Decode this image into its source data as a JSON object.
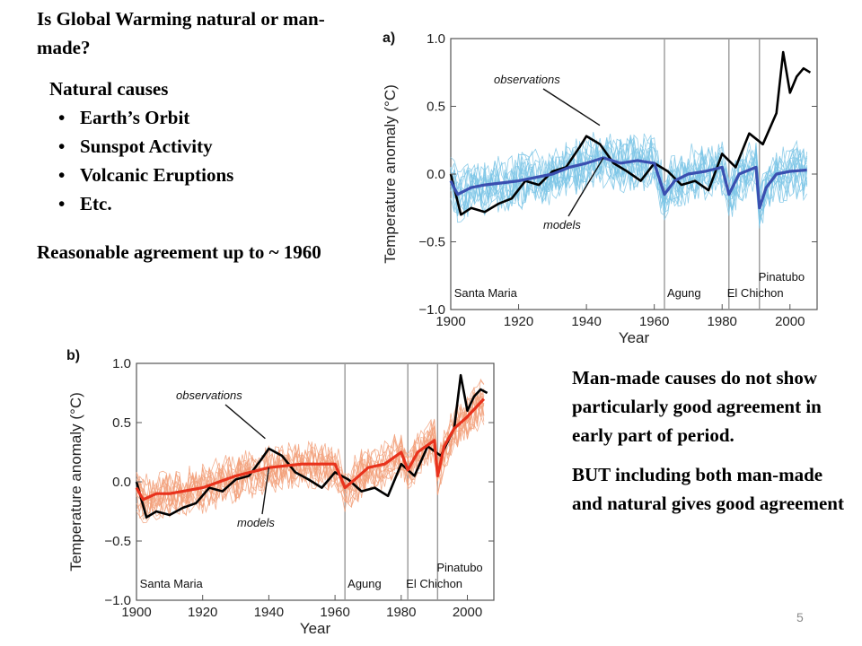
{
  "left": {
    "title": "Is Global Warming natural or man-made?",
    "natural_heading": "Natural causes",
    "natural_items": [
      "Earth’s Orbit",
      "Sunspot Activity",
      "Volcanic Eruptions",
      "Etc."
    ],
    "agreement": "Reasonable agreement up to ~ 1960"
  },
  "right": {
    "para1": "Man-made causes do not show particularly good agreement in early part of period.",
    "para2": "BUT including both man-made and natural gives good agreement"
  },
  "page_number": "5",
  "chart_data": [
    {
      "panel_label": "a)",
      "type": "line",
      "xlabel": "Year",
      "ylabel": "Temperature anomaly (°C)",
      "xlim": [
        1900,
        2008
      ],
      "ylim": [
        -1.0,
        1.0
      ],
      "xticks": [
        "1900",
        "1920",
        "1940",
        "1960",
        "1980",
        "2000"
      ],
      "yticks": [
        "1.0",
        "0.5",
        "0.0",
        "−0.5",
        "−1.0"
      ],
      "model_color": "#3a4fb0",
      "ensemble_color": "#7cc5e6",
      "obs_color": "#000000",
      "annotations": [
        {
          "text": "observations",
          "x": 1945,
          "y": 0.32
        },
        {
          "text": "models",
          "x": 1945,
          "y": 0.12
        }
      ],
      "volcanoes": [
        {
          "name": "Santa Maria",
          "year": 1902
        },
        {
          "name": "Agung",
          "year": 1963
        },
        {
          "name": "El Chichon",
          "year": 1982
        },
        {
          "name": "Pinatubo",
          "year": 1991
        }
      ],
      "series": [
        {
          "name": "observations",
          "x": [
            1900,
            1903,
            1906,
            1910,
            1914,
            1918,
            1922,
            1926,
            1930,
            1934,
            1938,
            1940,
            1944,
            1948,
            1952,
            1956,
            1960,
            1964,
            1968,
            1972,
            1976,
            1980,
            1984,
            1988,
            1992,
            1996,
            1998,
            2000,
            2002,
            2004,
            2006
          ],
          "values": [
            0.0,
            -0.3,
            -0.25,
            -0.28,
            -0.22,
            -0.18,
            -0.05,
            -0.08,
            0.02,
            0.05,
            0.2,
            0.28,
            0.22,
            0.08,
            0.02,
            -0.05,
            0.08,
            0.02,
            -0.08,
            -0.05,
            -0.12,
            0.15,
            0.05,
            0.3,
            0.22,
            0.45,
            0.9,
            0.6,
            0.72,
            0.78,
            0.75
          ]
        },
        {
          "name": "models",
          "x": [
            1900,
            1902,
            1906,
            1910,
            1920,
            1930,
            1935,
            1940,
            1945,
            1950,
            1955,
            1960,
            1963,
            1966,
            1970,
            1975,
            1980,
            1982,
            1985,
            1990,
            1991,
            1993,
            1996,
            2000,
            2005
          ],
          "values": [
            -0.05,
            -0.15,
            -0.1,
            -0.08,
            -0.05,
            0.0,
            0.05,
            0.08,
            0.12,
            0.08,
            0.1,
            0.08,
            -0.15,
            -0.05,
            0.0,
            0.02,
            0.05,
            -0.15,
            0.0,
            0.05,
            -0.25,
            -0.1,
            0.0,
            0.02,
            0.03
          ]
        }
      ]
    },
    {
      "panel_label": "b)",
      "type": "line",
      "xlabel": "Year",
      "ylabel": "Temperature anomaly (°C)",
      "xlim": [
        1900,
        2008
      ],
      "ylim": [
        -1.0,
        1.0
      ],
      "xticks": [
        "1900",
        "1920",
        "1940",
        "1960",
        "1980",
        "2000"
      ],
      "yticks": [
        "1.0",
        "0.5",
        "0.0",
        "−0.5",
        "−1.0"
      ],
      "model_color": "#e8321c",
      "ensemble_color": "#f2a07a",
      "obs_color": "#000000",
      "annotations": [
        {
          "text": "observations",
          "x": 1940,
          "y": 0.32
        },
        {
          "text": "models",
          "x": 1940,
          "y": 0.12
        }
      ],
      "volcanoes": [
        {
          "name": "Santa Maria",
          "year": 1902
        },
        {
          "name": "Agung",
          "year": 1963
        },
        {
          "name": "El Chichon",
          "year": 1982
        },
        {
          "name": "Pinatubo",
          "year": 1991
        }
      ],
      "series": [
        {
          "name": "observations",
          "x": [
            1900,
            1903,
            1906,
            1910,
            1914,
            1918,
            1922,
            1926,
            1930,
            1934,
            1938,
            1940,
            1944,
            1948,
            1952,
            1956,
            1960,
            1964,
            1968,
            1972,
            1976,
            1980,
            1984,
            1988,
            1992,
            1996,
            1998,
            2000,
            2002,
            2004,
            2006
          ],
          "values": [
            0.0,
            -0.3,
            -0.25,
            -0.28,
            -0.22,
            -0.18,
            -0.05,
            -0.08,
            0.02,
            0.05,
            0.2,
            0.28,
            0.22,
            0.08,
            0.02,
            -0.05,
            0.08,
            0.02,
            -0.08,
            -0.05,
            -0.12,
            0.15,
            0.05,
            0.3,
            0.22,
            0.45,
            0.9,
            0.6,
            0.72,
            0.78,
            0.75
          ]
        },
        {
          "name": "models",
          "x": [
            1900,
            1902,
            1906,
            1910,
            1920,
            1930,
            1940,
            1950,
            1960,
            1963,
            1966,
            1970,
            1975,
            1980,
            1982,
            1985,
            1990,
            1991,
            1993,
            1996,
            2000,
            2005
          ],
          "values": [
            -0.05,
            -0.15,
            -0.1,
            -0.1,
            -0.05,
            0.05,
            0.12,
            0.15,
            0.15,
            -0.05,
            0.02,
            0.12,
            0.15,
            0.25,
            0.1,
            0.25,
            0.35,
            0.05,
            0.3,
            0.45,
            0.55,
            0.7
          ]
        }
      ]
    }
  ]
}
